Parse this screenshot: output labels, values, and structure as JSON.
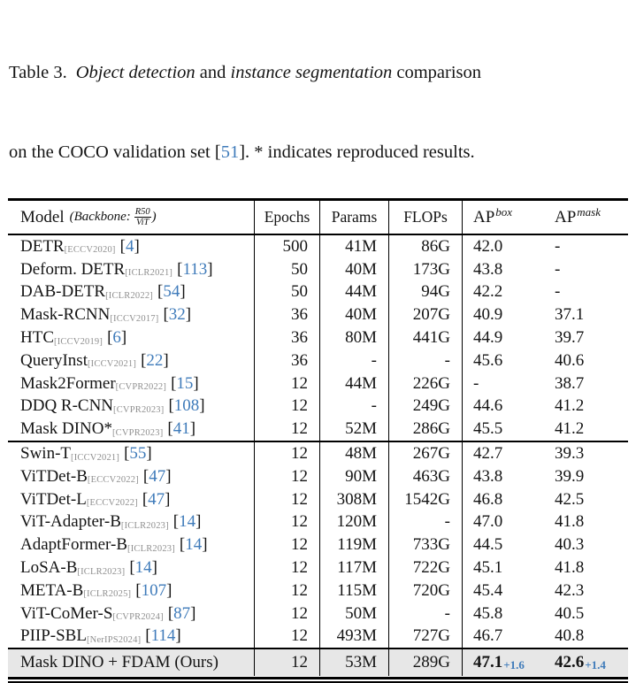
{
  "punct": {
    "lb": "[",
    "rb": "]"
  },
  "colors": {
    "cite_blue": "#3f7bba",
    "venue_gray": "#8f8f8f",
    "ours_row_bg": "#e7e7e7"
  },
  "caption": {
    "line1": {
      "label": "Table 3.",
      "italic1": "Object detection",
      "and": " and ",
      "italic2": "instance segmentation",
      "tail": " comparison"
    },
    "line2": {
      "pre": "on the COCO validation set ",
      "cite": "51",
      "post": ". * indicates reproduced results."
    }
  },
  "header": {
    "model": "Model",
    "backbone_open": "(Backbone:",
    "backbone_top": "R50",
    "backbone_bottom": "ViT",
    "backbone_close": ")",
    "epochs": "Epochs",
    "params": "Params",
    "flops": "FLOPs",
    "ap": "AP",
    "ap_box_sup": "box",
    "ap_mask_sup": "mask"
  },
  "table": {
    "rows": [
      {
        "model": "DETR",
        "venue": "[ECCV2020]",
        "cite": "4",
        "epochs": "500",
        "params": "41M",
        "flops": "86G",
        "apbox": "42.0",
        "apmask": "-"
      },
      {
        "model": "Deform. DETR",
        "venue": "[ICLR2021]",
        "cite": "113",
        "epochs": "50",
        "params": "40M",
        "flops": "173G",
        "apbox": "43.8",
        "apmask": "-"
      },
      {
        "model": "DAB-DETR",
        "venue": "[ICLR2022]",
        "cite": "54",
        "epochs": "50",
        "params": "44M",
        "flops": "94G",
        "apbox": "42.2",
        "apmask": "-"
      },
      {
        "model": "Mask-RCNN",
        "venue": "[ICCV2017]",
        "cite": "32",
        "epochs": "36",
        "params": "40M",
        "flops": "207G",
        "apbox": "40.9",
        "apmask": "37.1"
      },
      {
        "model": "HTC",
        "venue": "[ICCV2019]",
        "cite": "6",
        "epochs": "36",
        "params": "80M",
        "flops": "441G",
        "apbox": "44.9",
        "apmask": "39.7"
      },
      {
        "model": "QueryInst",
        "venue": "[ICCV2021]",
        "cite": "22",
        "epochs": "36",
        "params": "-",
        "flops": "-",
        "apbox": "45.6",
        "apmask": "40.6"
      },
      {
        "model": "Mask2Former",
        "venue": "[CVPR2022]",
        "cite": "15",
        "epochs": "12",
        "params": "44M",
        "flops": "226G",
        "apbox": "-",
        "apmask": "38.7"
      },
      {
        "model": "DDQ R-CNN",
        "venue": "[CVPR2023]",
        "cite": "108",
        "epochs": "12",
        "params": "-",
        "flops": "249G",
        "apbox": "44.6",
        "apmask": "41.2"
      },
      {
        "model": "Mask DINO*",
        "venue": "[CVPR2023]",
        "cite": "41",
        "epochs": "12",
        "params": "52M",
        "flops": "286G",
        "apbox": "45.5",
        "apmask": "41.2"
      },
      {
        "model": "Swin-T",
        "venue": "[ICCV2021]",
        "cite": "55",
        "epochs": "12",
        "params": "48M",
        "flops": "267G",
        "apbox": "42.7",
        "apmask": "39.3"
      },
      {
        "model": "ViTDet-B",
        "venue": "[ECCV2022]",
        "cite": "47",
        "epochs": "12",
        "params": "90M",
        "flops": "463G",
        "apbox": "43.8",
        "apmask": "39.9"
      },
      {
        "model": "ViTDet-L",
        "venue": "[ECCV2022]",
        "cite": "47",
        "epochs": "12",
        "params": "308M",
        "flops": "1542G",
        "apbox": "46.8",
        "apmask": "42.5"
      },
      {
        "model": "ViT-Adapter-B",
        "venue": "[ICLR2023]",
        "cite": "14",
        "epochs": "12",
        "params": "120M",
        "flops": "-",
        "apbox": "47.0",
        "apmask": "41.8"
      },
      {
        "model": "AdaptFormer-B",
        "venue": "[ICLR2023]",
        "cite": "14",
        "epochs": "12",
        "params": "119M",
        "flops": "733G",
        "apbox": "44.5",
        "apmask": "40.3"
      },
      {
        "model": "LoSA-B",
        "venue": "[ICLR2023]",
        "cite": "14",
        "epochs": "12",
        "params": "117M",
        "flops": "722G",
        "apbox": "45.1",
        "apmask": "41.8"
      },
      {
        "model": "META-B",
        "venue": "[ICLR2025]",
        "cite": "107",
        "epochs": "12",
        "params": "115M",
        "flops": "720G",
        "apbox": "45.4",
        "apmask": "42.3"
      },
      {
        "model": "ViT-CoMer-S",
        "venue": "[CVPR2024]",
        "cite": "87",
        "epochs": "12",
        "params": "50M",
        "flops": "-",
        "apbox": "45.8",
        "apmask": "40.5"
      },
      {
        "model": "PIIP-SBL",
        "venue": "[NerIPS2024]",
        "cite": "114",
        "epochs": "12",
        "params": "493M",
        "flops": "727G",
        "apbox": "46.7",
        "apmask": "40.8"
      }
    ],
    "section_break_after_index": 8,
    "ours": {
      "model": "Mask DINO + FDAM (Ours)",
      "epochs": "12",
      "params": "53M",
      "flops": "289G",
      "apbox": "47.1",
      "apbox_delta": "+1.6",
      "apmask": "42.6",
      "apmask_delta": "+1.4"
    }
  }
}
